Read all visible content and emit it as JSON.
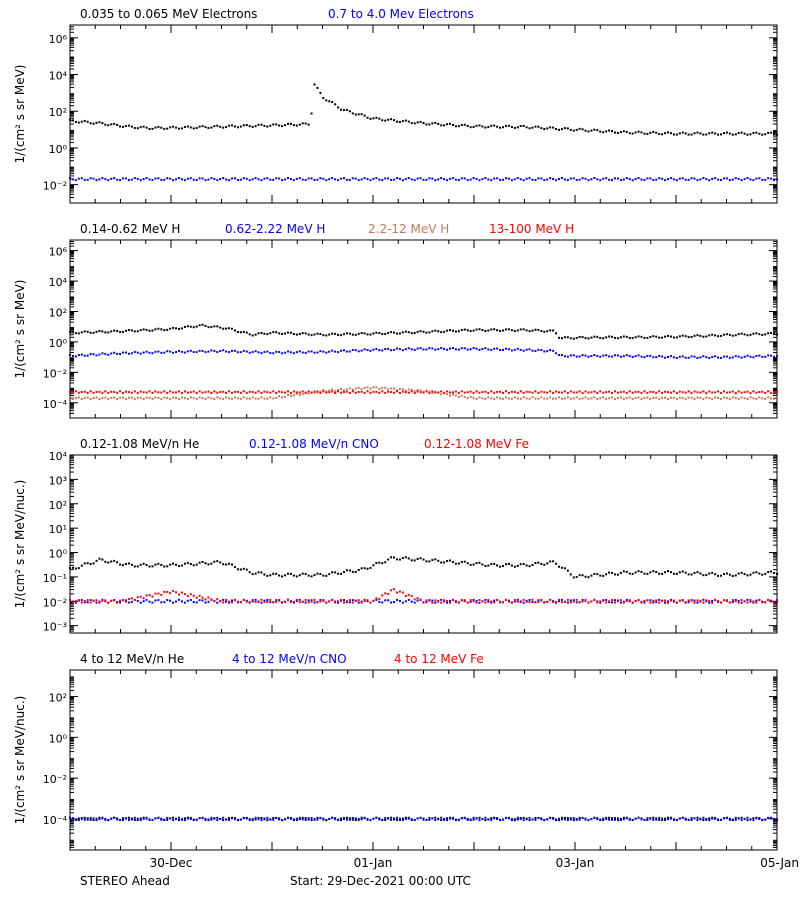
{
  "footer": {
    "left": "STEREO Ahead",
    "center": "Start: 29-Dec-2021 00:00 UTC"
  },
  "x_axis": {
    "range_days": [
      0,
      7
    ],
    "ticks": [
      {
        "day": 1,
        "label": "30-Dec"
      },
      {
        "day": 3,
        "label": "01-Jan"
      },
      {
        "day": 5,
        "label": "03-Jan"
      },
      {
        "day": 7,
        "label": "05-Jan"
      }
    ]
  },
  "chart_data": [
    {
      "type": "scatter",
      "ylabel": "1/(cm² s sr MeV)",
      "ylog": true,
      "ylim": [
        0.001,
        5000000
      ],
      "yticks": [
        {
          "exp": -2,
          "label": "10⁻²"
        },
        {
          "exp": 0,
          "label": "10⁰"
        },
        {
          "exp": 2,
          "label": "10²"
        },
        {
          "exp": 4,
          "label": "10⁴"
        },
        {
          "exp": 6,
          "label": "10⁶"
        }
      ],
      "series": [
        {
          "name": "0.035 to 0.065 MeV Electrons",
          "color": "#000000",
          "x": [
            0,
            0.3,
            0.6,
            0.8,
            1.2,
            1.6,
            2.0,
            2.38,
            2.42,
            2.5,
            2.7,
            3.0,
            3.5,
            4.0,
            4.5,
            5.0,
            5.5,
            6.0,
            6.5,
            7.0
          ],
          "y": [
            30,
            22,
            14,
            12,
            13,
            15,
            17,
            20,
            3000,
            600,
            120,
            40,
            22,
            15,
            14,
            10,
            7,
            6,
            6,
            6
          ]
        },
        {
          "name": "0.7 to 4.0 Mev Electrons",
          "color": "#0000ff",
          "x": [
            0,
            1,
            2,
            3,
            4,
            5,
            6,
            7
          ],
          "y": [
            0.02,
            0.02,
            0.02,
            0.02,
            0.02,
            0.02,
            0.02,
            0.02
          ]
        }
      ]
    },
    {
      "type": "scatter",
      "ylabel": "1/(cm² s sr MeV)",
      "ylog": true,
      "ylim": [
        1e-05,
        5000000
      ],
      "yticks": [
        {
          "exp": -4,
          "label": "10⁻⁴"
        },
        {
          "exp": -2,
          "label": "10⁻²"
        },
        {
          "exp": 0,
          "label": "10⁰"
        },
        {
          "exp": 2,
          "label": "10²"
        },
        {
          "exp": 4,
          "label": "10⁴"
        },
        {
          "exp": 6,
          "label": "10⁶"
        }
      ],
      "series": [
        {
          "name": "0.14-0.62 MeV H",
          "color": "#000000",
          "x": [
            0,
            0.5,
            1.0,
            1.3,
            1.55,
            1.8,
            2.0,
            2.5,
            3.0,
            3.5,
            4.0,
            4.5,
            4.8,
            4.85,
            5.3,
            5.6,
            6.0,
            6.3,
            6.6,
            7.0
          ],
          "y": [
            4,
            5,
            7,
            12,
            8,
            3,
            4,
            3,
            3.5,
            4.5,
            6,
            6,
            5,
            1.8,
            2,
            2,
            2.2,
            2.5,
            3,
            3.5
          ]
        },
        {
          "name": "0.62-2.22 MeV H",
          "color": "#0000ff",
          "x": [
            0,
            0.5,
            1.0,
            1.5,
            2.0,
            2.5,
            3.0,
            3.5,
            4.0,
            4.5,
            4.8,
            4.85,
            5.5,
            6.0,
            6.5,
            7.0
          ],
          "y": [
            0.12,
            0.18,
            0.22,
            0.25,
            0.2,
            0.22,
            0.3,
            0.35,
            0.35,
            0.3,
            0.25,
            0.12,
            0.12,
            0.1,
            0.1,
            0.12
          ]
        },
        {
          "name": "2.2-12 MeV H",
          "color": "#c47a5a",
          "x": [
            0,
            1,
            2,
            2.5,
            3.0,
            3.5,
            4,
            5,
            6,
            7
          ],
          "y": [
            0.0002,
            0.0002,
            0.0002,
            0.0006,
            0.001,
            0.0006,
            0.0002,
            0.0002,
            0.0002,
            0.0002
          ]
        },
        {
          "name": "13-100 MeV H",
          "color": "#ff0000",
          "x": [
            0,
            1,
            2,
            3,
            4,
            5,
            6,
            7
          ],
          "y": [
            0.0005,
            0.0005,
            0.0005,
            0.0005,
            0.0005,
            0.0005,
            0.0005,
            0.0005
          ]
        }
      ]
    },
    {
      "type": "scatter",
      "ylabel": "1/(cm² s sr MeV/nuc.)",
      "ylog": true,
      "ylim": [
        0.0005,
        10000
      ],
      "yticks": [
        {
          "exp": -3,
          "label": "10⁻³"
        },
        {
          "exp": -2,
          "label": "10⁻²"
        },
        {
          "exp": -1,
          "label": "10⁻¹"
        },
        {
          "exp": 0,
          "label": "10⁰"
        },
        {
          "exp": 1,
          "label": "10¹"
        },
        {
          "exp": 2,
          "label": "10²"
        },
        {
          "exp": 3,
          "label": "10³"
        },
        {
          "exp": 4,
          "label": "10⁴"
        }
      ],
      "series": [
        {
          "name": "0.12-1.08 MeV/n He",
          "color": "#000000",
          "x": [
            0,
            0.3,
            0.6,
            1.0,
            1.5,
            1.8,
            2.0,
            2.5,
            2.9,
            3.2,
            3.5,
            3.8,
            4.2,
            4.5,
            4.8,
            5.0,
            5.5,
            6.0,
            6.5,
            7.0
          ],
          "y": [
            0.2,
            0.5,
            0.3,
            0.3,
            0.4,
            0.15,
            0.12,
            0.12,
            0.2,
            0.6,
            0.5,
            0.4,
            0.3,
            0.3,
            0.4,
            0.1,
            0.15,
            0.15,
            0.12,
            0.15
          ]
        },
        {
          "name": "0.12-1.08 MeV/n CNO",
          "color": "#0000ff",
          "x": [
            0,
            1,
            2,
            3,
            4,
            5,
            6,
            7
          ],
          "y": [
            0.01,
            0.01,
            0.01,
            0.01,
            0.01,
            0.01,
            0.01,
            0.01
          ]
        },
        {
          "name": "0.12-1.08 MeV Fe",
          "color": "#ff0000",
          "x": [
            0,
            0.5,
            1.0,
            1.5,
            2.0,
            3.0,
            3.2,
            3.5,
            4.0,
            5.0,
            6.0,
            7.0
          ],
          "y": [
            0.01,
            0.01,
            0.025,
            0.01,
            0.01,
            0.01,
            0.03,
            0.01,
            0.01,
            0.01,
            0.01,
            0.01
          ]
        }
      ]
    },
    {
      "type": "scatter",
      "ylabel": "1/(cm² s sr MeV/nuc.)",
      "ylog": true,
      "ylim": [
        3e-06,
        2000
      ],
      "yticks": [
        {
          "exp": -4,
          "label": "10⁻⁴"
        },
        {
          "exp": -2,
          "label": "10⁻²"
        },
        {
          "exp": 0,
          "label": "10⁰"
        },
        {
          "exp": 2,
          "label": "10²"
        }
      ],
      "series": [
        {
          "name": "4 to 12 MeV/n He",
          "color": "#000000",
          "x": [
            0,
            1,
            2,
            3,
            4,
            5,
            6,
            7
          ],
          "y": [
            0.0001,
            0.0001,
            0.0001,
            0.0001,
            0.0001,
            0.0001,
            0.0001,
            0.0001
          ]
        },
        {
          "name": "4 to 12 MeV/n CNO",
          "color": "#0000ff",
          "x": [
            0,
            1,
            2,
            3,
            4,
            5,
            6,
            7
          ],
          "y": [
            0.0001,
            0.0001,
            0.0001,
            0.0001,
            0.0001,
            0.0001,
            0.0001,
            0.0001
          ]
        },
        {
          "name": "4 to 12 MeV Fe",
          "color": "#ff0000",
          "x": [],
          "y": []
        }
      ]
    }
  ]
}
